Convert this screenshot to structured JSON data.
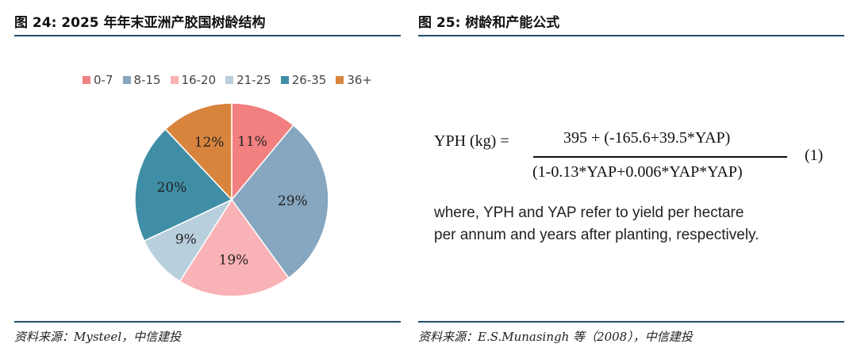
{
  "panels": {
    "left": {
      "title": "图 24: 2025 年年末亚洲产胶国树龄结构",
      "source": "资料来源：Mysteel，中信建投"
    },
    "right": {
      "title": "图 25:  树龄和产能公式",
      "source": "资料来源：E.S.Munasingh  等（2008），中信建投"
    }
  },
  "formula": {
    "lhs": "YPH (kg) =",
    "numerator": "395 + (-165.6+39.5*YAP)",
    "denominator": "(1-0.13*YAP+0.006*YAP*YAP)",
    "equation_number": "(1)",
    "note_line1": "where, YPH and YAP refer to yield per hectare",
    "note_line2": "per annum and years after planting, respectively."
  },
  "chart_data": {
    "type": "pie",
    "title": "",
    "legend_position": "top",
    "slices": [
      {
        "label": "0-7",
        "value": 11,
        "value_label": "11%",
        "color": "#f28080"
      },
      {
        "label": "8-15",
        "value": 29,
        "value_label": "29%",
        "color": "#87a6bf"
      },
      {
        "label": "16-20",
        "value": 19,
        "value_label": "19%",
        "color": "#f9b2b5"
      },
      {
        "label": "21-25",
        "value": 9,
        "value_label": "9%",
        "color": "#b8cfdd"
      },
      {
        "label": "26-35",
        "value": 20,
        "value_label": "20%",
        "color": "#3f8ea6"
      },
      {
        "label": "36+",
        "value": 12,
        "value_label": "12%",
        "color": "#d9843d"
      }
    ]
  }
}
